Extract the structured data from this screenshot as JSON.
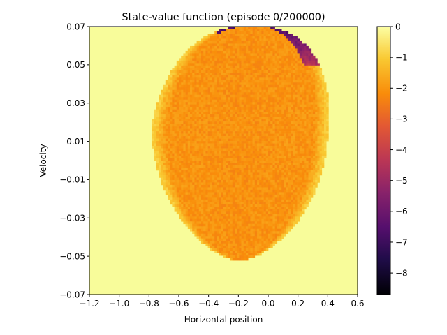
{
  "chart_data": {
    "type": "heatmap",
    "title": "State-value function (episode 0/200000)",
    "xlabel": "Horizontal position",
    "ylabel": "Velocity",
    "xlim": [
      -1.2,
      0.6
    ],
    "ylim": [
      -0.07,
      0.07
    ],
    "x_ticks": [
      "−1.2",
      "−1.0",
      "−0.8",
      "−0.6",
      "−0.4",
      "−0.2",
      "0.0",
      "0.2",
      "0.4",
      "0.6"
    ],
    "x_tick_values": [
      -1.2,
      -1.0,
      -0.8,
      -0.6,
      -0.4,
      -0.2,
      0.0,
      0.2,
      0.4,
      0.6
    ],
    "y_ticks": [
      "0.07",
      "0.05",
      "0.03",
      "0.01",
      "−0.01",
      "−0.03",
      "−0.05",
      "−0.07"
    ],
    "y_tick_values": [
      0.07,
      0.05,
      0.03,
      0.01,
      -0.01,
      -0.03,
      -0.05,
      -0.07
    ],
    "colorbar": {
      "colormap": "inferno",
      "range": [
        -8.7,
        0
      ],
      "ticks": [
        "0",
        "−1",
        "−2",
        "−3",
        "−4",
        "−5",
        "−6",
        "−7",
        "−8"
      ],
      "tick_values": [
        0,
        -1,
        -2,
        -3,
        -4,
        -5,
        -6,
        -7,
        -8
      ]
    },
    "background_value": -0.1,
    "region": {
      "center_x": -0.3,
      "center_y": 0.017,
      "velocity_range": [
        -0.0525,
        0.0705
      ],
      "position_range": [
        -0.775,
        0.395
      ],
      "typical_value": -2.0,
      "edge_value": -1.0
    },
    "high_velocity_band": {
      "description": "darker values near top-right edge",
      "value_range": [
        -4.5,
        -6.8
      ]
    }
  }
}
